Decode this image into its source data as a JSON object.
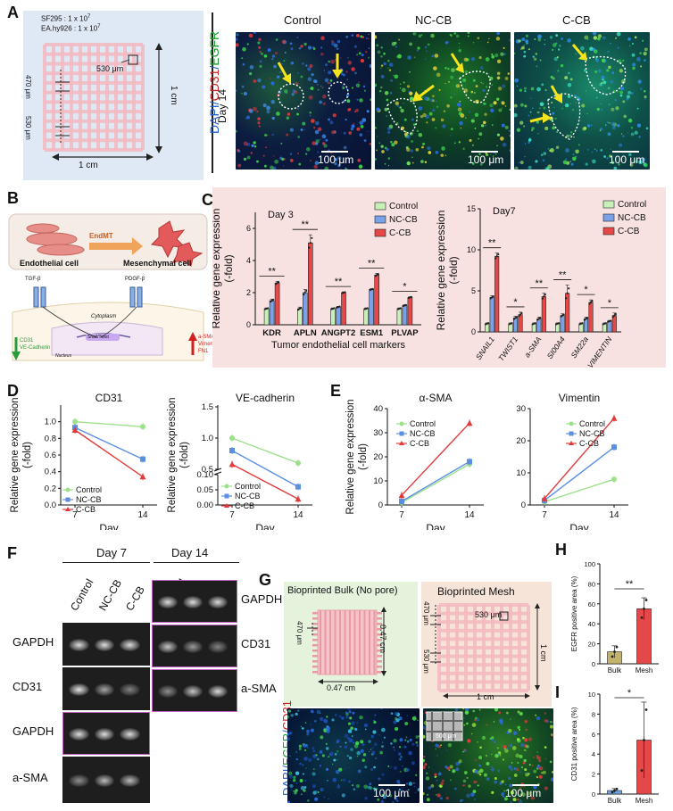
{
  "panel_labels": {
    "A": "A",
    "B": "B",
    "C": "C",
    "D": "D",
    "E": "E",
    "F": "F",
    "G": "G",
    "H": "H",
    "I": "I"
  },
  "panelA": {
    "cell_line_1": "SF295 : 1 x 10",
    "cell_line_2": "EA.hy926 : 1 x 10",
    "exp": "7",
    "dim_530_um": "530 μm",
    "dim_470_um": "470 μm",
    "dim_530_um_vert": "530 μm",
    "dim_1cm_h": "1 cm",
    "dim_1cm_v": "1 cm",
    "stain_dapi": "DAPI/",
    "stain_cd31": "CD31",
    "stain_slash": "/",
    "stain_egfr": "EGFR",
    "day": "Day 14",
    "conditions": [
      "Control",
      "NC-CB",
      "C-CB"
    ],
    "scale": "100 μm"
  },
  "panelB": {
    "endmt": "EndMT",
    "endothelial": "Endothelial cell",
    "mesenchymal": "Mesenchymal cell",
    "tgf": "TGF-β",
    "pdgf": "PDGF-β",
    "cytoplasm": "Cytoplasm",
    "nucleus": "Nucleus",
    "snail": "Snail/Twist",
    "down_markers": [
      "CD31",
      "VE-Cadherin"
    ],
    "up_markers": [
      "a-SMA",
      "Vimentin",
      "FN1"
    ]
  },
  "chart_data": [
    {
      "id": "C-day3",
      "type": "bar",
      "title": "Day 3",
      "ylabel": "Relative gene expression (-fold)",
      "xlabel": "Tumor endothelial cell markers",
      "categories": [
        "KDR",
        "APLN",
        "ANGPT2",
        "ESM1",
        "PLVAP"
      ],
      "ylim": [
        0,
        7
      ],
      "yticks": [
        0,
        2,
        4,
        6
      ],
      "series": [
        {
          "name": "Control",
          "color": "#c9f0b8",
          "values": [
            1.0,
            1.0,
            1.0,
            1.0,
            1.0
          ],
          "err": [
            0.05,
            0.1,
            0.05,
            0.05,
            0.05
          ]
        },
        {
          "name": "NC-CB",
          "color": "#7aa2e8",
          "values": [
            1.5,
            2.0,
            1.1,
            2.2,
            1.2
          ],
          "err": [
            0.1,
            0.2,
            0.05,
            0.05,
            0.05
          ]
        },
        {
          "name": "C-CB",
          "color": "#e44848",
          "values": [
            2.6,
            5.1,
            2.0,
            3.1,
            1.7
          ],
          "err": [
            0.1,
            0.5,
            0.05,
            0.1,
            0.05
          ]
        }
      ],
      "significance": [
        "**",
        "**",
        "**",
        "**",
        "*"
      ]
    },
    {
      "id": "C-day7",
      "type": "bar",
      "title": "Day7",
      "ylabel": "Relative gene expression (-fold)",
      "categories": [
        "SNAIL1",
        "TWIST1",
        "a-SMA",
        "SI00A4",
        "SM22a",
        "VIMENTIN"
      ],
      "ylim": [
        0,
        15
      ],
      "yticks": [
        0,
        5,
        10,
        15
      ],
      "series": [
        {
          "name": "Control",
          "color": "#c9f0b8",
          "values": [
            1.0,
            1.0,
            1.0,
            1.0,
            1.0,
            1.0
          ],
          "err": [
            0.1,
            0.1,
            0.1,
            0.1,
            0.1,
            0.1
          ]
        },
        {
          "name": "NC-CB",
          "color": "#7aa2e8",
          "values": [
            4.2,
            1.7,
            1.6,
            2.0,
            1.6,
            1.3
          ],
          "err": [
            0.2,
            0.2,
            0.2,
            0.2,
            0.2,
            0.1
          ]
        },
        {
          "name": "C-CB",
          "color": "#e44848",
          "values": [
            9.2,
            2.1,
            4.3,
            4.7,
            3.6,
            2.0
          ],
          "err": [
            0.4,
            0.3,
            0.4,
            1.0,
            0.3,
            0.3
          ]
        }
      ],
      "significance": [
        "**",
        "*",
        "**",
        "**",
        "*",
        "*"
      ]
    },
    {
      "id": "D-cd31",
      "type": "line",
      "title": "CD31",
      "ylabel": "Relative gene expression (-fold)",
      "xlabel": "Day",
      "x": [
        7,
        14
      ],
      "ylim": [
        0,
        1.2
      ],
      "yticks": [
        0.0,
        0.2,
        0.4,
        0.6,
        0.8,
        1.0
      ],
      "series": [
        {
          "name": "Control",
          "color": "#9de08a",
          "marker": "circle",
          "values": [
            1.0,
            0.94
          ]
        },
        {
          "name": "NC-CB",
          "color": "#5b8fe0",
          "marker": "square",
          "values": [
            0.93,
            0.55
          ]
        },
        {
          "name": "C-CB",
          "color": "#e23a3a",
          "marker": "triangle",
          "values": [
            0.9,
            0.34
          ]
        }
      ]
    },
    {
      "id": "D-vecad",
      "type": "line",
      "title": "VE-cadherin",
      "ylabel": "Relative gene expression (-fold)",
      "xlabel": "Day",
      "x": [
        7,
        14
      ],
      "ylim": [
        0,
        1.5
      ],
      "yticks": [
        0.0,
        0.05,
        0.1,
        0.5,
        1.0,
        1.5
      ],
      "series": [
        {
          "name": "Control",
          "color": "#9de08a",
          "marker": "circle",
          "values": [
            1.0,
            0.6
          ]
        },
        {
          "name": "NC-CB",
          "color": "#5b8fe0",
          "marker": "square",
          "values": [
            0.8,
            0.06
          ]
        },
        {
          "name": "C-CB",
          "color": "#e23a3a",
          "marker": "triangle",
          "values": [
            0.58,
            0.02
          ]
        }
      ]
    },
    {
      "id": "E-asma",
      "type": "line",
      "title": "α-SMA",
      "ylabel": "Relative gene expression (-fold)",
      "xlabel": "Day",
      "x": [
        7,
        14
      ],
      "ylim": [
        0,
        40
      ],
      "yticks": [
        0,
        10,
        20,
        30,
        40
      ],
      "series": [
        {
          "name": "Control",
          "color": "#9de08a",
          "marker": "circle",
          "values": [
            1.0,
            17
          ]
        },
        {
          "name": "NC-CB",
          "color": "#5b8fe0",
          "marker": "square",
          "values": [
            1.5,
            18
          ]
        },
        {
          "name": "C-CB",
          "color": "#e23a3a",
          "marker": "triangle",
          "values": [
            4,
            34
          ]
        }
      ]
    },
    {
      "id": "E-vim",
      "type": "line",
      "title": "Vimentin",
      "ylabel": "",
      "xlabel": "Day",
      "x": [
        7,
        14
      ],
      "ylim": [
        0,
        30
      ],
      "yticks": [
        0,
        10,
        20,
        30
      ],
      "series": [
        {
          "name": "Control",
          "color": "#9de08a",
          "marker": "circle",
          "values": [
            1.0,
            8
          ]
        },
        {
          "name": "NC-CB",
          "color": "#5b8fe0",
          "marker": "square",
          "values": [
            1.4,
            18
          ]
        },
        {
          "name": "C-CB",
          "color": "#e23a3a",
          "marker": "triangle",
          "values": [
            2,
            27
          ]
        }
      ]
    },
    {
      "id": "H",
      "type": "bar",
      "ylabel": "EGFR positive area (%)",
      "categories": [
        "Bulk",
        "Mesh"
      ],
      "ylim": [
        0,
        100
      ],
      "yticks": [
        0,
        20,
        40,
        60,
        80,
        100
      ],
      "colors": [
        "#c2b26a",
        "#e44848"
      ],
      "values": [
        12,
        55
      ],
      "err": [
        6,
        11
      ],
      "significance": "**"
    },
    {
      "id": "I",
      "type": "bar",
      "ylabel": "CD31 positive area (%)",
      "categories": [
        "Bulk",
        "Mesh"
      ],
      "ylim": [
        0,
        10
      ],
      "yticks": [
        0,
        2,
        4,
        6,
        8,
        10
      ],
      "colors": [
        "#6aa6e8",
        "#e44848"
      ],
      "values": [
        0.35,
        5.4
      ],
      "err": [
        0.2,
        3.8
      ],
      "significance": "*"
    }
  ],
  "panelF": {
    "day7": "Day 7",
    "day14": "Day 14",
    "lanes": [
      "Control",
      "NC-CB",
      "C-CB",
      "Control",
      "NC-CB",
      "C-CB"
    ],
    "left_rows": [
      "GAPDH",
      "CD31",
      "GAPDH",
      "a-SMA"
    ],
    "right_rows": [
      "GAPDH",
      "CD31",
      "a-SMA"
    ]
  },
  "panelG": {
    "bulk_title": "Bioprinted Bulk (No pore)",
    "mesh_title": "Bioprinted Mesh",
    "bulk_470": "470 μm",
    "bulk_047_h": "0.47 cm",
    "bulk_047_v": "0.47 cm",
    "mesh_470": "470 μm",
    "mesh_530": "530 μm",
    "mesh_530b": "530 μm",
    "mesh_1cm_h": "1 cm",
    "mesh_1cm_v": "1 cm",
    "stain_dapi": "DAPI/",
    "stain_egfr": "EGFR",
    "stain_slash": "/",
    "stain_cd31": "CD31",
    "scale": "100 μm",
    "inset_scale": "500 μm"
  }
}
